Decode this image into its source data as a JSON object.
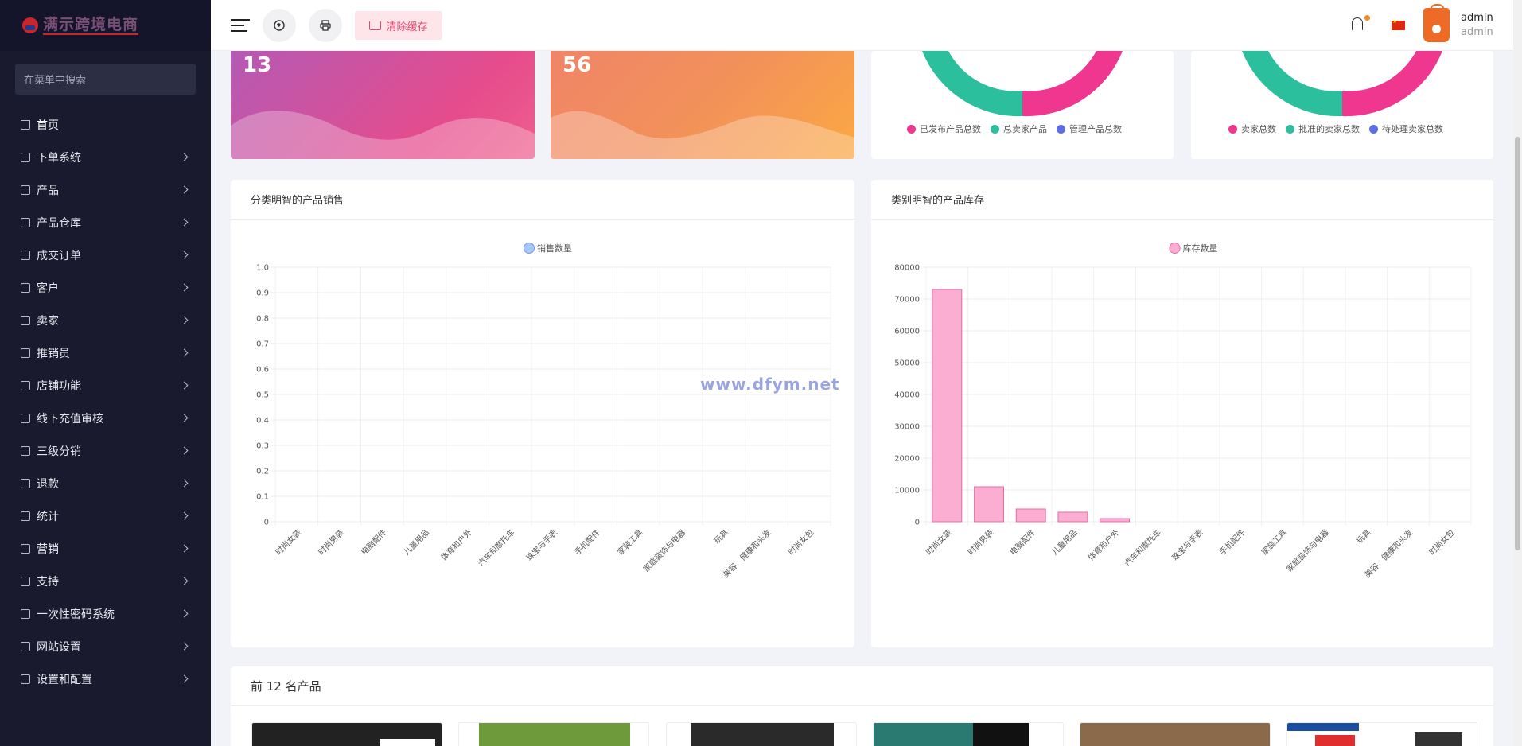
{
  "sidebar": {
    "brand": "满示跨境电商",
    "search_placeholder": "在菜单中搜索",
    "items": [
      {
        "label": "首页",
        "icon": "home-icon",
        "active": true
      },
      {
        "label": "下单系统",
        "icon": "list-icon"
      },
      {
        "label": "产品",
        "icon": "cart-icon"
      },
      {
        "label": "产品仓库",
        "icon": "box-icon"
      },
      {
        "label": "成交订单",
        "icon": "order-icon"
      },
      {
        "label": "客户",
        "icon": "users-icon"
      },
      {
        "label": "卖家",
        "icon": "user-icon"
      },
      {
        "label": "推销员",
        "icon": "user-icon"
      },
      {
        "label": "店铺功能",
        "icon": "user-icon"
      },
      {
        "label": "线下充值审核",
        "icon": "id-card-icon"
      },
      {
        "label": "三级分销",
        "icon": "link-icon"
      },
      {
        "label": "退款",
        "icon": "undo-icon"
      },
      {
        "label": "统计",
        "icon": "file-icon"
      },
      {
        "label": "营销",
        "icon": "megaphone-icon"
      },
      {
        "label": "支持",
        "icon": "link-icon"
      },
      {
        "label": "一次性密码系统",
        "icon": "phone-icon"
      },
      {
        "label": "网站设置",
        "icon": "monitor-icon"
      },
      {
        "label": "设置和配置",
        "icon": "gear-icon"
      }
    ]
  },
  "header": {
    "clear_cache": "清除缓存",
    "user_name": "admin",
    "user_role": "admin"
  },
  "stats": [
    {
      "value": "13"
    },
    {
      "value": "56"
    }
  ],
  "donut_legends": [
    [
      {
        "label": "已发布产品总数",
        "color": "#f0378f"
      },
      {
        "label": "总卖家产品",
        "color": "#2bbf9d"
      },
      {
        "label": "管理产品总数",
        "color": "#5b6ee6"
      }
    ],
    [
      {
        "label": "卖家总数",
        "color": "#f0378f"
      },
      {
        "label": "批准的卖家总数",
        "color": "#2bbf9d"
      },
      {
        "label": "待处理卖家总数",
        "color": "#5b6ee6"
      }
    ]
  ],
  "chart_data": [
    {
      "type": "bar",
      "title": "分类明智的产品销售",
      "legend": "销售数量",
      "categories": [
        "时尚女装",
        "时尚男装",
        "电脑配件",
        "儿童用品",
        "体育和户外",
        "汽车和摩托车",
        "珠宝与手表",
        "手机配件",
        "家装工具",
        "家庭装饰与电器",
        "玩具",
        "美容、健康和头发",
        "时尚女包"
      ],
      "values": [
        0,
        0,
        0,
        0,
        0,
        0,
        0,
        0,
        0,
        0,
        0,
        0,
        0
      ],
      "ylim": [
        0,
        1.0
      ],
      "yticks": [
        "0",
        "0.1",
        "0.2",
        "0.3",
        "0.4",
        "0.5",
        "0.6",
        "0.7",
        "0.8",
        "0.9",
        "1.0"
      ],
      "color": "#a8c6f8",
      "border": "#6e9ee8"
    },
    {
      "type": "bar",
      "title": "类别明智的产品库存",
      "legend": "库存数量",
      "categories": [
        "时尚女装",
        "时尚男装",
        "电脑配件",
        "儿童用品",
        "体育和户外",
        "汽车和摩托车",
        "珠宝与手表",
        "手机配件",
        "家装工具",
        "家庭装饰与电器",
        "玩具",
        "美容、健康和头发",
        "时尚女包"
      ],
      "values": [
        73000,
        11000,
        4000,
        3000,
        1000,
        0,
        0,
        0,
        0,
        0,
        0,
        0,
        0
      ],
      "ylim": [
        0,
        80000
      ],
      "yticks": [
        "0",
        "10000",
        "20000",
        "30000",
        "40000",
        "50000",
        "60000",
        "70000",
        "80000"
      ],
      "color": "#fbaed2",
      "border": "#e86aa6"
    }
  ],
  "top_products": {
    "title": "前 12 名产品"
  },
  "watermark": "www.dfym.net"
}
